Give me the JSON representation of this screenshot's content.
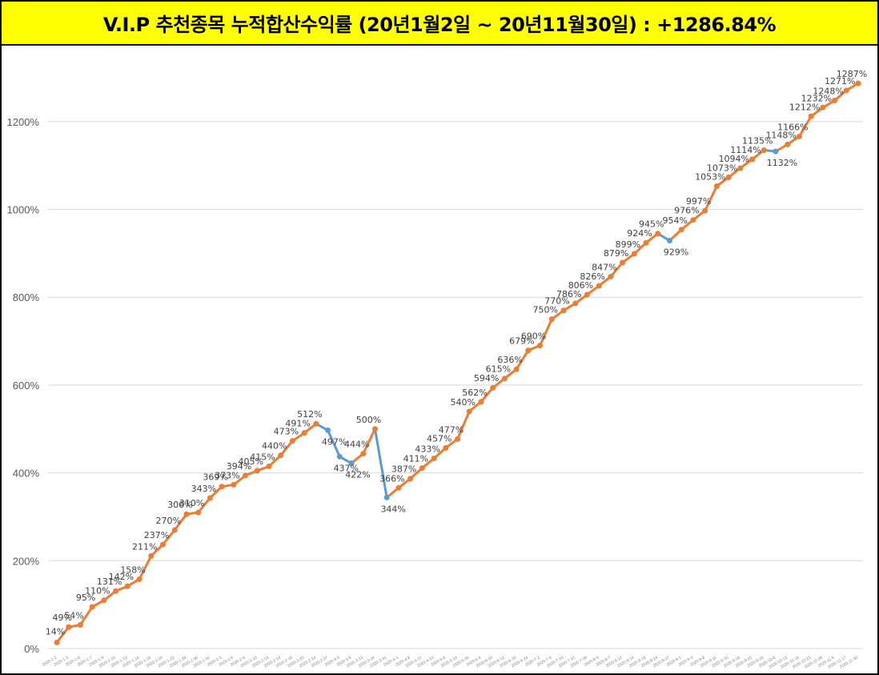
{
  "title": "V.I.P 추천종목 누적합산수익률 (20년1월2일 ~ 20년11월30일) : +1286.84%",
  "colors": {
    "up": "#ed7d31",
    "down": "#5b9bd5",
    "grid": "#d9d9d9",
    "title_bg": "#ffff00"
  },
  "chart_data": {
    "type": "line",
    "ylim": [
      0,
      1300
    ],
    "yticks": [
      0,
      200,
      400,
      600,
      800,
      1000,
      1200
    ],
    "ytick_labels": [
      "0%",
      "200%",
      "400%",
      "600%",
      "800%",
      "1000%",
      "1200%"
    ],
    "grid": true,
    "legend": "none",
    "values": [
      14,
      49,
      54,
      95,
      110,
      131,
      142,
      158,
      211,
      237,
      270,
      306,
      310,
      343,
      369,
      373,
      394,
      405,
      415,
      440,
      473,
      491,
      512,
      497,
      437,
      422,
      444,
      500,
      344,
      366,
      387,
      411,
      433,
      457,
      477,
      540,
      562,
      594,
      615,
      636,
      679,
      690,
      750,
      770,
      786,
      806,
      826,
      847,
      879,
      899,
      924,
      945,
      929,
      954,
      976,
      997,
      1053,
      1073,
      1094,
      1114,
      1135,
      1132,
      1148,
      1166,
      1212,
      1232,
      1248,
      1271,
      1287
    ],
    "labels": [
      "14%",
      "49%",
      "54%",
      "95%",
      "110%",
      "131%",
      "142%",
      "158%",
      "211%",
      "237%",
      "270%",
      "306%",
      "310%",
      "343%",
      "369%",
      "373%",
      "394%",
      "405%",
      "415%",
      "440%",
      "473%",
      "491%",
      "512%",
      "497%",
      "437%",
      "422%",
      "444%",
      "500%",
      "344%",
      "366%",
      "387%",
      "411%",
      "433%",
      "457%",
      "477%",
      "540%",
      "562%",
      "594%",
      "615%",
      "636%",
      "679%",
      "690%",
      "750%",
      "770%",
      "786%",
      "806%",
      "826%",
      "847%",
      "879%",
      "899%",
      "924%",
      "945%",
      "929%",
      "954%",
      "976%",
      "997%",
      "1053%",
      "1073%",
      "1094%",
      "1114%",
      "1135%",
      "1132%",
      "1148%",
      "1166%",
      "1212%",
      "1232%",
      "1248%",
      "1271%",
      "1287%"
    ],
    "categories": [
      "2020-1-2",
      "2020-1-3",
      "2020-1-6",
      "2020-1-7",
      "2020-1-9",
      "2020-1-10",
      "2020-1-13",
      "2020-1-14",
      "2020-1-16",
      "2020-1-20",
      "2020-1-22",
      "2020-1-29",
      "2020-1-30",
      "2020-1-31",
      "2020-2-3",
      "2020-2-5",
      "2020-2-6",
      "2020-2-10",
      "2020-2-13",
      "2020-2-14",
      "2020-2-18",
      "2020-2-20",
      "2020-2-24",
      "2020-2-27",
      "2020-3-3",
      "2020-3-9",
      "2020-3-13",
      "2020-3-24",
      "2020-3-31",
      "2020-4-1",
      "2020-4-8",
      "2020-4-17",
      "2020-4-23",
      "2020-5-6",
      "2020-5-14",
      "2020-5-26",
      "2020-6-4",
      "2020-6-10",
      "2020-6-12",
      "2020-6-19",
      "2020-6-24",
      "2020-7-2",
      "2020-7-9",
      "2020-7-16",
      "2020-7-21",
      "2020-7-29",
      "2020-8-4",
      "2020-8-7",
      "2020-8-12",
      "2020-8-14",
      "2020-8-19",
      "2020-8-24",
      "2020-8-27",
      "2020-9-1",
      "2020-9-3",
      "2020-9-8",
      "2020-9-11",
      "2020-9-15",
      "2020-9-18",
      "2020-9-22",
      "2020-9-25",
      "2020-10-8",
      "2020-10-13",
      "2020-10-19",
      "2020-10-23",
      "2020-10-29",
      "2020-11-5",
      "2020-11-17",
      "2020-11-30"
    ]
  }
}
